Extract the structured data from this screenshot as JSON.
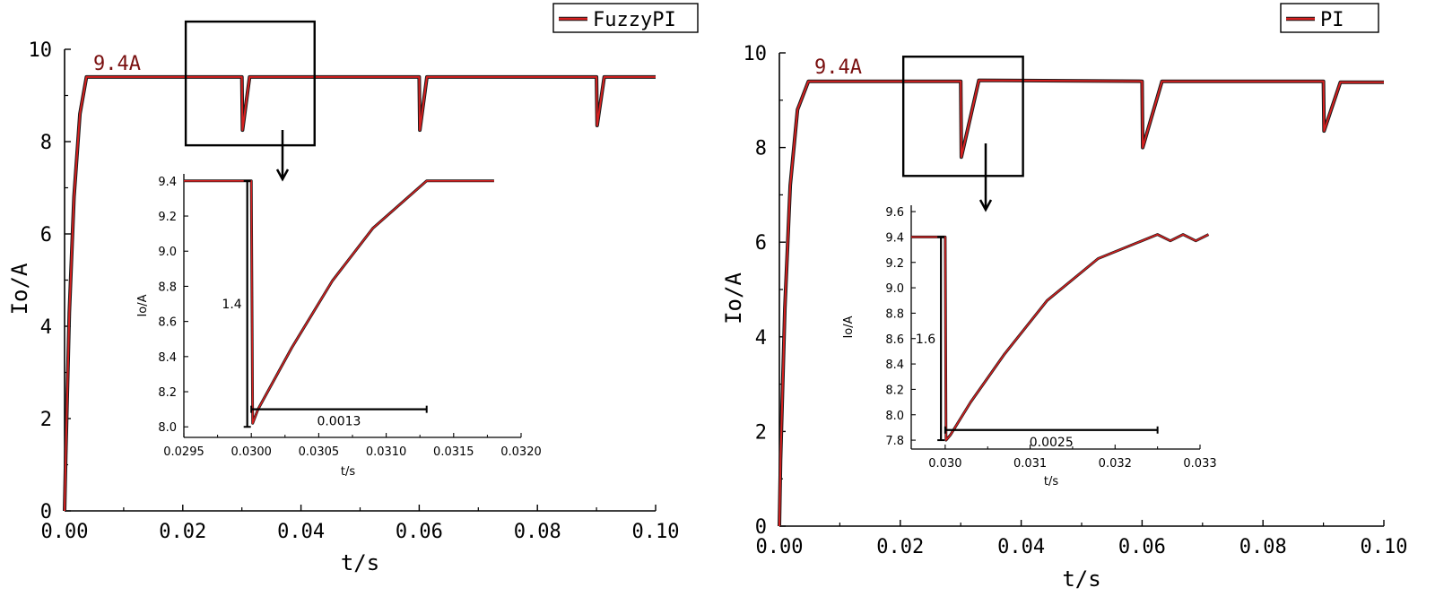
{
  "chart_data": [
    {
      "type": "line",
      "id": "left",
      "ylabel": "Io/A",
      "xlabel": "t/s",
      "xlim": [
        0,
        0.1
      ],
      "ylim": [
        0,
        10
      ],
      "x_ticks": [
        "0.00",
        "0.02",
        "0.04",
        "0.06",
        "0.08",
        "0.10"
      ],
      "y_ticks": [
        "0",
        "2",
        "4",
        "6",
        "8",
        "10"
      ],
      "legend": "FuzzyPI",
      "level_label": "9.4A",
      "series": [
        {
          "name": "FuzzyPI",
          "color": "#d62020",
          "points": [
            [
              0,
              0
            ],
            [
              0.0002,
              1.2
            ],
            [
              0.0008,
              4.3
            ],
            [
              0.0016,
              6.8
            ],
            [
              0.0026,
              8.6
            ],
            [
              0.0037,
              9.4
            ],
            [
              0.03,
              9.4
            ],
            [
              0.0301,
              8.25
            ],
            [
              0.0313,
              9.4
            ],
            [
              0.06,
              9.4
            ],
            [
              0.0601,
              8.25
            ],
            [
              0.0613,
              9.4
            ],
            [
              0.09,
              9.4
            ],
            [
              0.0901,
              8.35
            ],
            [
              0.0913,
              9.4
            ],
            [
              0.1,
              9.4
            ]
          ]
        }
      ],
      "zoom_box": {
        "x": [
          0.0205,
          0.0423
        ],
        "y": [
          7.92,
          10.6
        ]
      },
      "inset": {
        "xlabel": "t/s",
        "ylabel": "Io/A",
        "xlim": [
          0.0295,
          0.032
        ],
        "ylim": [
          7.94,
          9.44
        ],
        "x_ticks": [
          "0.0295",
          "0.0300",
          "0.0305",
          "0.0310",
          "0.0315",
          "0.0320"
        ],
        "y_ticks": [
          "8.0",
          "8.2",
          "8.4",
          "8.6",
          "8.8",
          "9.0",
          "9.2",
          "9.4"
        ],
        "points": [
          [
            0.0295,
            9.4
          ],
          [
            0.03,
            9.4
          ],
          [
            0.03001,
            8.02
          ],
          [
            0.03005,
            8.1
          ],
          [
            0.0303,
            8.45
          ],
          [
            0.0306,
            8.83
          ],
          [
            0.0309,
            9.13
          ],
          [
            0.0313,
            9.4
          ],
          [
            0.0318,
            9.4
          ]
        ],
        "drop_label": "1.4",
        "time_label": "0.0013",
        "drop_x": 0.02997,
        "drop_y": [
          8.0,
          9.4
        ],
        "time_x": [
          0.03,
          0.0313
        ],
        "time_y": 8.1
      }
    },
    {
      "type": "line",
      "id": "right",
      "ylabel": "Io/A",
      "xlabel": "t/s",
      "xlim": [
        0,
        0.1
      ],
      "ylim": [
        0,
        10
      ],
      "x_ticks": [
        "0.00",
        "0.02",
        "0.04",
        "0.06",
        "0.08",
        "0.10"
      ],
      "y_ticks": [
        "0",
        "2",
        "4",
        "6",
        "8",
        "10"
      ],
      "legend": "PI",
      "level_label": "9.4A",
      "series": [
        {
          "name": "PI",
          "color": "#d62020",
          "points": [
            [
              0,
              0
            ],
            [
              0.0002,
              1.4
            ],
            [
              0.0009,
              4.6
            ],
            [
              0.0018,
              7.2
            ],
            [
              0.003,
              8.8
            ],
            [
              0.0048,
              9.4
            ],
            [
              0.03,
              9.4
            ],
            [
              0.0301,
              7.8
            ],
            [
              0.033,
              9.42
            ],
            [
              0.06,
              9.4
            ],
            [
              0.0601,
              8.0
            ],
            [
              0.0633,
              9.4
            ],
            [
              0.09,
              9.4
            ],
            [
              0.0901,
              8.35
            ],
            [
              0.0928,
              9.38
            ],
            [
              0.1,
              9.38
            ]
          ]
        }
      ],
      "zoom_box": {
        "x": [
          0.0205,
          0.0403
        ],
        "y": [
          7.4,
          9.92
        ]
      },
      "inset": {
        "xlabel": "t/s",
        "ylabel": "Io/A",
        "xlim": [
          0.0296,
          0.033
        ],
        "ylim": [
          7.73,
          9.65
        ],
        "x_ticks": [
          "0.030",
          "0.031",
          "0.032",
          "0.033"
        ],
        "y_ticks": [
          "7.8",
          "8.0",
          "8.2",
          "8.4",
          "8.6",
          "8.8",
          "9.0",
          "9.2",
          "9.4",
          "9.6"
        ],
        "points": [
          [
            0.0296,
            9.4
          ],
          [
            0.03,
            9.4
          ],
          [
            0.03001,
            7.8
          ],
          [
            0.03006,
            7.84
          ],
          [
            0.0303,
            8.1
          ],
          [
            0.0307,
            8.48
          ],
          [
            0.0312,
            8.9
          ],
          [
            0.0318,
            9.23
          ],
          [
            0.0325,
            9.42
          ],
          [
            0.03265,
            9.37
          ],
          [
            0.0328,
            9.42
          ],
          [
            0.03295,
            9.37
          ],
          [
            0.0331,
            9.42
          ]
        ],
        "drop_label": "1.6",
        "time_label": "0.0025",
        "drop_x": 0.02995,
        "drop_y": [
          7.8,
          9.4
        ],
        "time_x": [
          0.03,
          0.0325
        ],
        "time_y": 7.88
      }
    }
  ]
}
